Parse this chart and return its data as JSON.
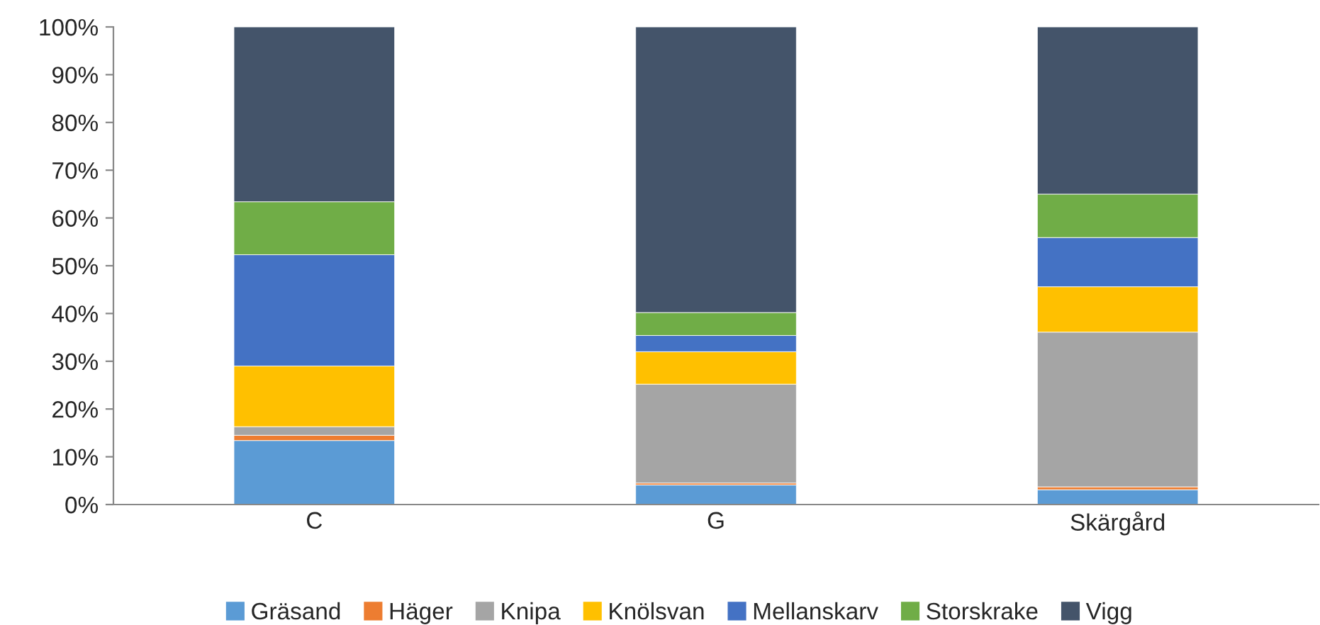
{
  "chart_data": {
    "type": "bar",
    "stacked": true,
    "categories": [
      "C",
      "G",
      "Skärgård"
    ],
    "series": [
      {
        "name": "Gräsand",
        "color": "#5b9bd5",
        "values": [
          13.4,
          4.1,
          3.1
        ]
      },
      {
        "name": "Häger",
        "color": "#ed7d31",
        "values": [
          1.1,
          0.4,
          0.6
        ]
      },
      {
        "name": "Knipa",
        "color": "#a5a5a5",
        "values": [
          1.8,
          20.7,
          32.4
        ]
      },
      {
        "name": "Knölsvan",
        "color": "#ffc000",
        "values": [
          12.7,
          6.8,
          9.5
        ]
      },
      {
        "name": "Mellanskarv",
        "color": "#4472c4",
        "values": [
          23.3,
          3.4,
          10.3
        ]
      },
      {
        "name": "Storskrake",
        "color": "#70ad47",
        "values": [
          11.1,
          4.8,
          9.1
        ]
      },
      {
        "name": "Vigg",
        "color": "#44546a",
        "values": [
          36.6,
          59.8,
          35.0
        ]
      }
    ],
    "ylim": [
      0,
      100
    ],
    "yticks": [
      {
        "value": 0,
        "label": "0%"
      },
      {
        "value": 10,
        "label": "10%"
      },
      {
        "value": 20,
        "label": "20%"
      },
      {
        "value": 30,
        "label": "30%"
      },
      {
        "value": 40,
        "label": "40%"
      },
      {
        "value": 50,
        "label": "50%"
      },
      {
        "value": 60,
        "label": "60%"
      },
      {
        "value": 70,
        "label": "70%"
      },
      {
        "value": 80,
        "label": "80%"
      },
      {
        "value": 90,
        "label": "90%"
      },
      {
        "value": 100,
        "label": "100%"
      }
    ],
    "grid": false,
    "legend": "bottom"
  }
}
